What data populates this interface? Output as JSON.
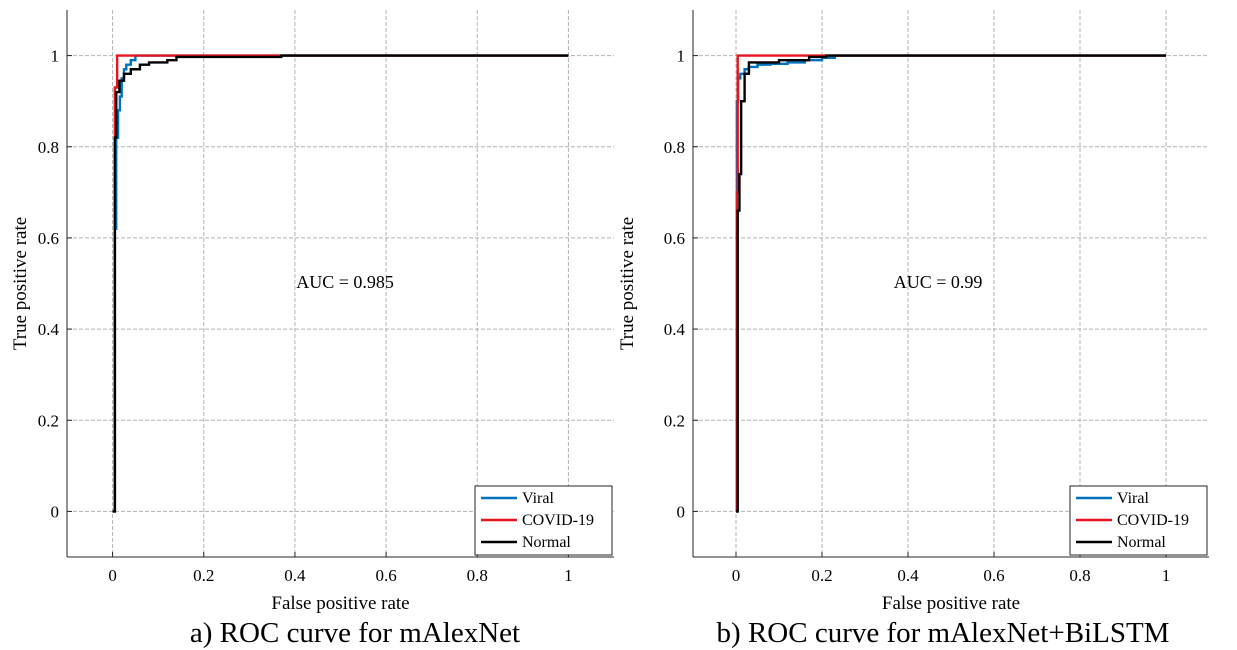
{
  "chart_data": [
    {
      "type": "line",
      "title": "a) ROC curve for mAlexNet",
      "xlabel": "False positive rate",
      "ylabel": "True positive rate",
      "xlim": [
        -0.1,
        1.1
      ],
      "ylim": [
        -0.1,
        1.1
      ],
      "xticks": [
        0,
        0.2,
        0.4,
        0.6,
        0.8,
        1
      ],
      "yticks": [
        0,
        0.2,
        0.4,
        0.6,
        0.8,
        1
      ],
      "xtick_labels": [
        "0",
        "0.2",
        "0.4",
        "0.6",
        "0.8",
        "1"
      ],
      "ytick_labels": [
        "0",
        "0.2",
        "0.4",
        "0.6",
        "0.8",
        "1"
      ],
      "grid": true,
      "legend_position": "bottom-right",
      "annotation": {
        "text": "AUC = 0.985",
        "x": 0.51,
        "y": 0.49
      },
      "series": [
        {
          "name": "Viral",
          "color": "#0072BD",
          "x": [
            0,
            0.005,
            0.005,
            0.008,
            0.008,
            0.012,
            0.012,
            0.016,
            0.016,
            0.02,
            0.02,
            0.025,
            0.025,
            0.03,
            0.03,
            0.04,
            0.04,
            0.05,
            0.05,
            1
          ],
          "y": [
            0,
            0,
            0.62,
            0.62,
            0.82,
            0.82,
            0.88,
            0.88,
            0.91,
            0.91,
            0.95,
            0.95,
            0.97,
            0.97,
            0.98,
            0.98,
            0.99,
            0.99,
            1,
            1
          ]
        },
        {
          "name": "COVID-19",
          "color": "#E8141D",
          "x": [
            0,
            0.005,
            0.005,
            0.01,
            0.01,
            0.37,
            0.37,
            1
          ],
          "y": [
            0,
            0,
            0.93,
            0.93,
            1,
            1,
            1,
            1
          ]
        },
        {
          "name": "Normal",
          "color": "#000000",
          "x": [
            0,
            0.005,
            0.005,
            0.008,
            0.008,
            0.015,
            0.015,
            0.025,
            0.025,
            0.04,
            0.04,
            0.06,
            0.06,
            0.08,
            0.08,
            0.12,
            0.12,
            0.14,
            0.14,
            0.37,
            0.37,
            1
          ],
          "y": [
            0,
            0,
            0.82,
            0.82,
            0.92,
            0.92,
            0.945,
            0.945,
            0.96,
            0.96,
            0.97,
            0.97,
            0.98,
            0.98,
            0.985,
            0.985,
            0.99,
            0.99,
            0.997,
            0.997,
            1,
            1
          ]
        }
      ]
    },
    {
      "type": "line",
      "title": "b) ROC curve for mAlexNet+BiLSTM",
      "xlabel": "False positive rate",
      "ylabel": "True positive rate",
      "xlim": [
        -0.1,
        1.1
      ],
      "ylim": [
        -0.1,
        1.1
      ],
      "xticks": [
        0,
        0.2,
        0.4,
        0.6,
        0.8,
        1
      ],
      "yticks": [
        0,
        0.2,
        0.4,
        0.6,
        0.8,
        1
      ],
      "xtick_labels": [
        "0",
        "0.2",
        "0.4",
        "0.6",
        "0.8",
        "1"
      ],
      "ytick_labels": [
        "0",
        "0.2",
        "0.4",
        "0.6",
        "0.8",
        "1"
      ],
      "grid": true,
      "legend_position": "bottom-right",
      "annotation": {
        "text": "AUC = 0.99",
        "x": 0.47,
        "y": 0.49
      },
      "series": [
        {
          "name": "Viral",
          "color": "#0072BD",
          "x": [
            0,
            0.002,
            0.002,
            0.005,
            0.005,
            0.01,
            0.01,
            0.02,
            0.02,
            0.03,
            0.03,
            0.05,
            0.05,
            0.08,
            0.08,
            0.12,
            0.12,
            0.16,
            0.16,
            0.2,
            0.2,
            0.23,
            0.23,
            1
          ],
          "y": [
            0,
            0,
            0.9,
            0.9,
            0.95,
            0.95,
            0.96,
            0.96,
            0.97,
            0.97,
            0.975,
            0.975,
            0.98,
            0.98,
            0.982,
            0.982,
            0.985,
            0.985,
            0.99,
            0.99,
            0.995,
            0.995,
            1,
            1
          ]
        },
        {
          "name": "COVID-19",
          "color": "#E8141D",
          "x": [
            0,
            0.002,
            0.002,
            0.004,
            0.004,
            0.1,
            0.1,
            1
          ],
          "y": [
            0,
            0,
            0.7,
            0.7,
            1,
            1,
            1,
            1
          ]
        },
        {
          "name": "Normal",
          "color": "#000000",
          "x": [
            0,
            0.004,
            0.004,
            0.008,
            0.008,
            0.012,
            0.012,
            0.02,
            0.02,
            0.03,
            0.03,
            0.1,
            0.1,
            0.17,
            0.17,
            0.21,
            0.21,
            1
          ],
          "y": [
            0,
            0,
            0.66,
            0.66,
            0.74,
            0.74,
            0.9,
            0.9,
            0.96,
            0.96,
            0.985,
            0.985,
            0.99,
            0.99,
            0.997,
            0.997,
            1,
            1
          ]
        }
      ]
    }
  ]
}
